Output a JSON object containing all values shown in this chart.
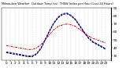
{
  "title": "Milwaukee Weather  Outdoor Temp (vs)  THSW Index per Hour (Last 24 Hours)",
  "bg_color": "#ffffff",
  "grid_color": "#bbbbbb",
  "hours": [
    0,
    1,
    2,
    3,
    4,
    5,
    6,
    7,
    8,
    9,
    10,
    11,
    12,
    13,
    14,
    15,
    16,
    17,
    18,
    19,
    20,
    21,
    22,
    23
  ],
  "temp_values": [
    43,
    42,
    41,
    40,
    39,
    38,
    38,
    40,
    44,
    50,
    57,
    63,
    67,
    69,
    70,
    69,
    67,
    63,
    59,
    55,
    52,
    50,
    48,
    46
  ],
  "thsw_values": [
    35,
    34,
    33,
    32,
    31,
    30,
    30,
    33,
    40,
    51,
    62,
    72,
    79,
    83,
    84,
    81,
    76,
    68,
    60,
    53,
    48,
    45,
    42,
    39
  ],
  "black_values": [
    34,
    33,
    32,
    31,
    30,
    29,
    29,
    32,
    39,
    50,
    61,
    71,
    78,
    82,
    83,
    80,
    75,
    67,
    59,
    52,
    47,
    44,
    41,
    38
  ],
  "out_temp_color": "#dd0000",
  "thsw_color": "#0000dd",
  "black_color": "#000000",
  "ylim_min": 25,
  "ylim_max": 90,
  "ytick_values": [
    30,
    40,
    50,
    60,
    70,
    80,
    90
  ],
  "ytick_labels": [
    "30",
    "40",
    "50",
    "60",
    "70",
    "80",
    "90"
  ],
  "tick_fontsize": 3.2,
  "title_fontsize": 2.6,
  "line_width": 0.7
}
